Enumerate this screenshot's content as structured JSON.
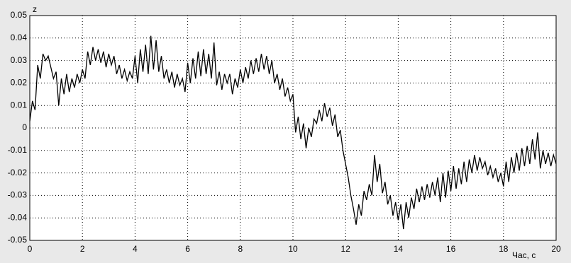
{
  "chart_data": {
    "type": "line",
    "y_label": "z",
    "x_label": "Час, с",
    "xlim": [
      0,
      20
    ],
    "xticks": [
      0,
      2,
      4,
      6,
      8,
      10,
      12,
      14,
      16,
      18,
      20
    ],
    "ylim": [
      -0.05,
      0.05
    ],
    "yticks": [
      -0.05,
      -0.04,
      -0.03,
      -0.02,
      -0.01,
      0,
      0.01,
      0.02,
      0.03,
      0.04,
      0.05
    ],
    "grid": true,
    "color": "#000000",
    "x": [
      0,
      0.1,
      0.2,
      0.3,
      0.4,
      0.5,
      0.6,
      0.7,
      0.8,
      0.9,
      1,
      1.1,
      1.2,
      1.3,
      1.4,
      1.5,
      1.6,
      1.7,
      1.8,
      1.9,
      2,
      2.1,
      2.2,
      2.3,
      2.4,
      2.5,
      2.6,
      2.7,
      2.8,
      2.9,
      3,
      3.1,
      3.2,
      3.3,
      3.4,
      3.5,
      3.6,
      3.7,
      3.8,
      3.9,
      4,
      4.1,
      4.2,
      4.3,
      4.4,
      4.5,
      4.6,
      4.7,
      4.8,
      4.9,
      5,
      5.1,
      5.2,
      5.3,
      5.4,
      5.5,
      5.6,
      5.7,
      5.8,
      5.9,
      6,
      6.1,
      6.2,
      6.3,
      6.4,
      6.5,
      6.6,
      6.7,
      6.8,
      6.9,
      7,
      7.1,
      7.2,
      7.3,
      7.4,
      7.5,
      7.6,
      7.7,
      7.8,
      7.9,
      8,
      8.1,
      8.2,
      8.3,
      8.4,
      8.5,
      8.6,
      8.7,
      8.8,
      8.9,
      9,
      9.1,
      9.2,
      9.3,
      9.4,
      9.5,
      9.6,
      9.7,
      9.8,
      9.9,
      10,
      10.1,
      10.2,
      10.3,
      10.4,
      10.5,
      10.6,
      10.7,
      10.8,
      10.9,
      11,
      11.1,
      11.2,
      11.3,
      11.4,
      11.5,
      11.6,
      11.7,
      11.8,
      11.9,
      12,
      12.1,
      12.2,
      12.3,
      12.4,
      12.5,
      12.6,
      12.7,
      12.8,
      12.9,
      13,
      13.1,
      13.2,
      13.3,
      13.4,
      13.5,
      13.6,
      13.7,
      13.8,
      13.9,
      14,
      14.1,
      14.2,
      14.3,
      14.4,
      14.5,
      14.6,
      14.7,
      14.8,
      14.9,
      15,
      15.1,
      15.2,
      15.3,
      15.4,
      15.5,
      15.6,
      15.7,
      15.8,
      15.9,
      16,
      16.1,
      16.2,
      16.3,
      16.4,
      16.5,
      16.6,
      16.7,
      16.8,
      16.9,
      17,
      17.1,
      17.2,
      17.3,
      17.4,
      17.5,
      17.6,
      17.7,
      17.8,
      17.9,
      18,
      18.1,
      18.2,
      18.3,
      18.4,
      18.5,
      18.6,
      18.7,
      18.8,
      18.9,
      19,
      19.1,
      19.2,
      19.3,
      19.4,
      19.5,
      19.6,
      19.7,
      19.8,
      19.9,
      20
    ],
    "values": [
      0.003,
      0.012,
      0.008,
      0.028,
      0.022,
      0.033,
      0.03,
      0.032,
      0.027,
      0.022,
      0.025,
      0.01,
      0.022,
      0.015,
      0.024,
      0.016,
      0.022,
      0.018,
      0.024,
      0.02,
      0.026,
      0.022,
      0.034,
      0.028,
      0.036,
      0.03,
      0.035,
      0.029,
      0.034,
      0.027,
      0.033,
      0.028,
      0.032,
      0.024,
      0.028,
      0.022,
      0.026,
      0.021,
      0.025,
      0.022,
      0.032,
      0.02,
      0.035,
      0.025,
      0.037,
      0.024,
      0.041,
      0.026,
      0.039,
      0.025,
      0.032,
      0.022,
      0.026,
      0.02,
      0.025,
      0.018,
      0.024,
      0.019,
      0.022,
      0.016,
      0.029,
      0.02,
      0.031,
      0.022,
      0.034,
      0.023,
      0.035,
      0.024,
      0.033,
      0.022,
      0.038,
      0.019,
      0.025,
      0.017,
      0.024,
      0.02,
      0.024,
      0.015,
      0.022,
      0.018,
      0.026,
      0.02,
      0.027,
      0.022,
      0.03,
      0.024,
      0.031,
      0.025,
      0.033,
      0.026,
      0.032,
      0.024,
      0.03,
      0.02,
      0.024,
      0.017,
      0.022,
      0.014,
      0.018,
      0.012,
      0.015,
      -0.002,
      0.005,
      -0.005,
      0.002,
      -0.009,
      0.0,
      -0.004,
      0.004,
      0.002,
      0.008,
      0.003,
      0.011,
      0.005,
      0.009,
      0.001,
      0.006,
      -0.004,
      -0.001,
      -0.01,
      -0.016,
      -0.022,
      -0.03,
      -0.036,
      -0.043,
      -0.034,
      -0.039,
      -0.028,
      -0.032,
      -0.025,
      -0.03,
      -0.012,
      -0.024,
      -0.016,
      -0.029,
      -0.024,
      -0.034,
      -0.03,
      -0.039,
      -0.033,
      -0.041,
      -0.034,
      -0.045,
      -0.033,
      -0.04,
      -0.031,
      -0.036,
      -0.027,
      -0.033,
      -0.026,
      -0.032,
      -0.025,
      -0.031,
      -0.024,
      -0.03,
      -0.022,
      -0.033,
      -0.02,
      -0.031,
      -0.019,
      -0.028,
      -0.017,
      -0.027,
      -0.018,
      -0.025,
      -0.015,
      -0.024,
      -0.014,
      -0.02,
      -0.012,
      -0.019,
      -0.013,
      -0.018,
      -0.015,
      -0.021,
      -0.017,
      -0.022,
      -0.018,
      -0.024,
      -0.02,
      -0.026,
      -0.015,
      -0.024,
      -0.013,
      -0.02,
      -0.011,
      -0.019,
      -0.009,
      -0.017,
      -0.008,
      -0.016,
      -0.005,
      -0.014,
      -0.002,
      -0.018,
      -0.01,
      -0.016,
      -0.011,
      -0.017,
      -0.012,
      -0.016
    ]
  }
}
